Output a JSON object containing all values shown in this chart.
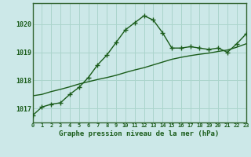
{
  "title": "Graphe pression niveau de la mer (hPa)",
  "bg_color": "#cce8e8",
  "grid_color": "#aad4cc",
  "line_color": "#1a5c1a",
  "border_color": "#336633",
  "x_values": [
    0,
    1,
    2,
    3,
    4,
    5,
    6,
    7,
    8,
    9,
    10,
    11,
    12,
    13,
    14,
    15,
    16,
    17,
    18,
    19,
    20,
    21,
    22,
    23
  ],
  "y1_values": [
    1016.75,
    1017.05,
    1017.15,
    1017.2,
    1017.5,
    1017.75,
    1018.1,
    1018.55,
    1018.9,
    1019.35,
    1019.8,
    1020.05,
    1020.3,
    1020.15,
    1019.7,
    1019.15,
    1019.15,
    1019.2,
    1019.15,
    1019.1,
    1019.15,
    1019.0,
    1019.3,
    1019.65
  ],
  "y2_values": [
    1017.45,
    1017.5,
    1017.6,
    1017.68,
    1017.77,
    1017.87,
    1017.95,
    1018.03,
    1018.1,
    1018.18,
    1018.28,
    1018.37,
    1018.45,
    1018.55,
    1018.65,
    1018.75,
    1018.82,
    1018.88,
    1018.93,
    1018.97,
    1019.03,
    1019.08,
    1019.18,
    1019.3
  ],
  "xlim": [
    0,
    23
  ],
  "ylim": [
    1016.5,
    1020.75
  ],
  "yticks": [
    1017,
    1018,
    1019,
    1020
  ],
  "xtick_labels": [
    "0",
    "1",
    "2",
    "3",
    "4",
    "5",
    "6",
    "7",
    "8",
    "9",
    "10",
    "11",
    "12",
    "13",
    "14",
    "15",
    "16",
    "17",
    "18",
    "19",
    "20",
    "21",
    "22",
    "23"
  ]
}
